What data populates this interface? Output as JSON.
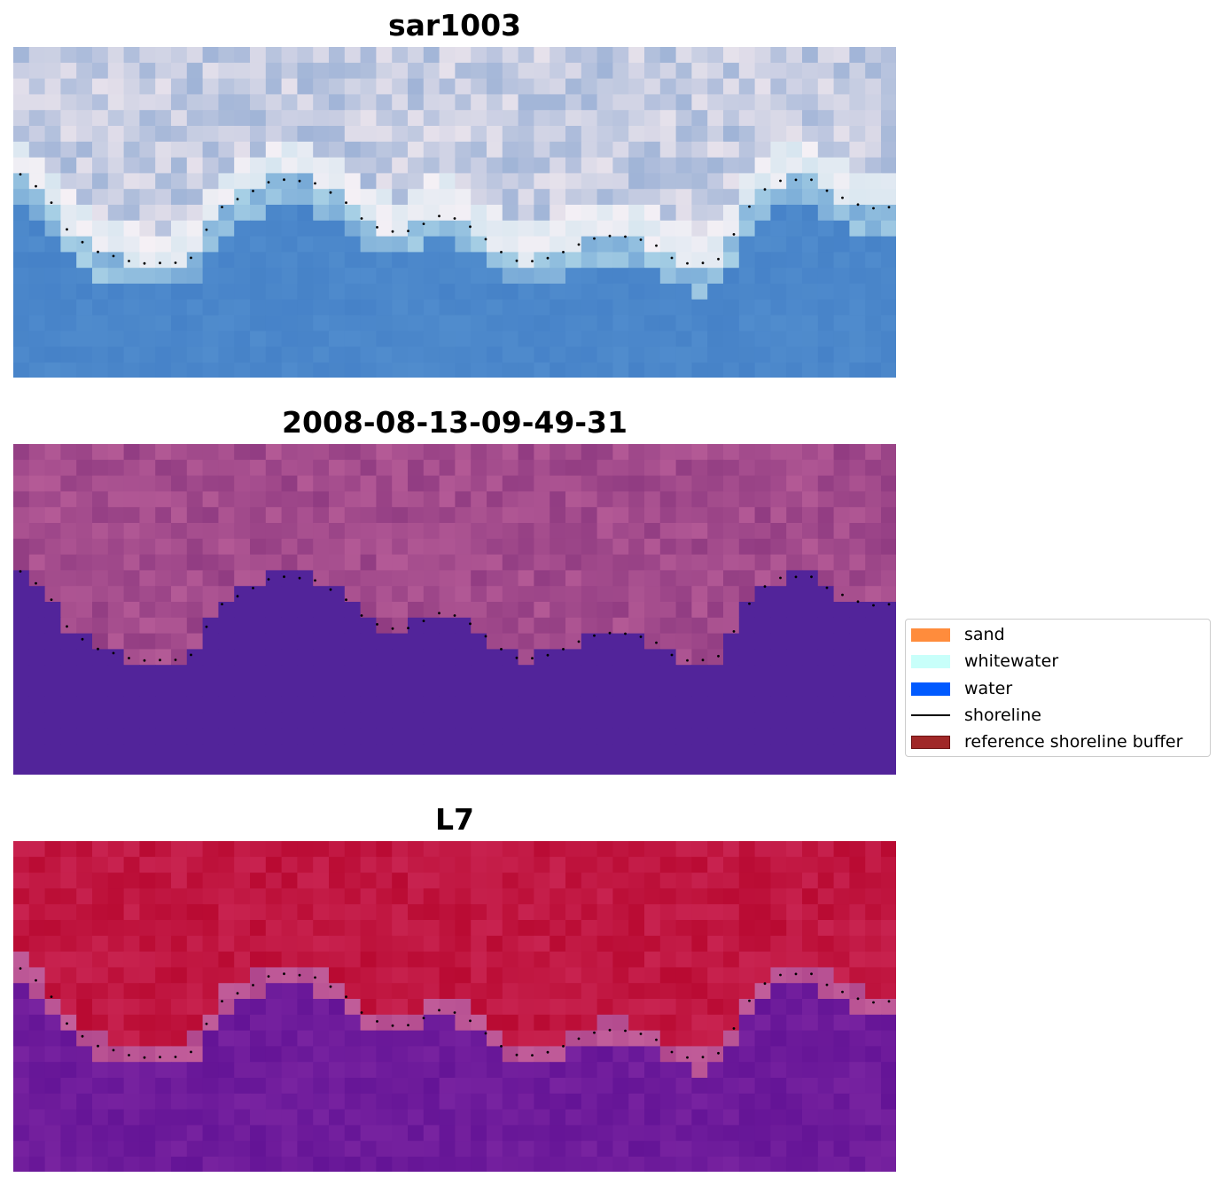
{
  "panels": [
    {
      "title": "sar1003",
      "style": "rgb"
    },
    {
      "title": "2008-08-13-09-49-31",
      "style": "classified"
    },
    {
      "title": "L7",
      "style": "ndwi"
    }
  ],
  "legend": {
    "items": [
      {
        "label": "sand",
        "color": "#ff8c3c",
        "kind": "patch"
      },
      {
        "label": "whitewater",
        "color": "#c8fffa",
        "kind": "patch"
      },
      {
        "label": "water",
        "color": "#005aff",
        "kind": "patch"
      },
      {
        "label": "shoreline",
        "color": "#000000",
        "kind": "line"
      },
      {
        "label": "reference shoreline buffer",
        "color": "#a02828",
        "kind": "patch"
      }
    ]
  },
  "colors": {
    "classified_water": "#52249a",
    "classified_land": "#a84f8c",
    "ndwi_land": "#c01a44",
    "ndwi_water": "#6c1a9e",
    "rgb_water": "#4a8ccc",
    "rgb_cloud": "#dde0ee"
  }
}
